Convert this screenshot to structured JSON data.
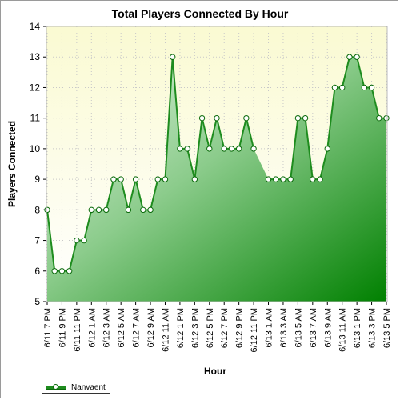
{
  "chart_data": {
    "type": "area",
    "title": "Total Players Connected By Hour",
    "xlabel": "Hour",
    "ylabel": "Players Connected",
    "ylim": [
      5,
      14
    ],
    "yticks": [
      5,
      6,
      7,
      8,
      9,
      10,
      11,
      12,
      13,
      14
    ],
    "grid": true,
    "legend_position": "bottom-left",
    "x_tick_labels": [
      "6/11 7 PM",
      "6/11 9 PM",
      "6/11 11 PM",
      "6/12 1 AM",
      "6/12 3 AM",
      "6/12 5 AM",
      "6/12 7 AM",
      "6/12 9 AM",
      "6/12 11 AM",
      "6/12 1 PM",
      "6/12 3 PM",
      "6/12 5 PM",
      "6/12 7 PM",
      "6/12 9 PM",
      "6/12 11 PM",
      "6/13 1 AM",
      "6/13 3 AM",
      "6/13 5 AM",
      "6/13 7 AM",
      "6/13 9 AM",
      "6/13 11 AM",
      "6/13 1 PM",
      "6/13 3 PM",
      "6/13 5 PM"
    ],
    "series": [
      {
        "name": "Nanvaent",
        "color": "#1e8c1e",
        "values": [
          8,
          6,
          6,
          6,
          7,
          7,
          8,
          8,
          8,
          9,
          9,
          8,
          9,
          8,
          8,
          9,
          9,
          13,
          10,
          10,
          9,
          11,
          10,
          11,
          10,
          10,
          10,
          11,
          10,
          null,
          9,
          9,
          9,
          9,
          11,
          11,
          9,
          9,
          10,
          12,
          12,
          13,
          13,
          12,
          12,
          11,
          11
        ]
      }
    ]
  },
  "colors": {
    "plot_background_top": "#fafad2",
    "plot_background_bottom": "#ffffff",
    "area_light": "#d9f0d9",
    "area_dark": "#008000",
    "line": "#1e8c1e",
    "grid": "#c8c8c8"
  }
}
